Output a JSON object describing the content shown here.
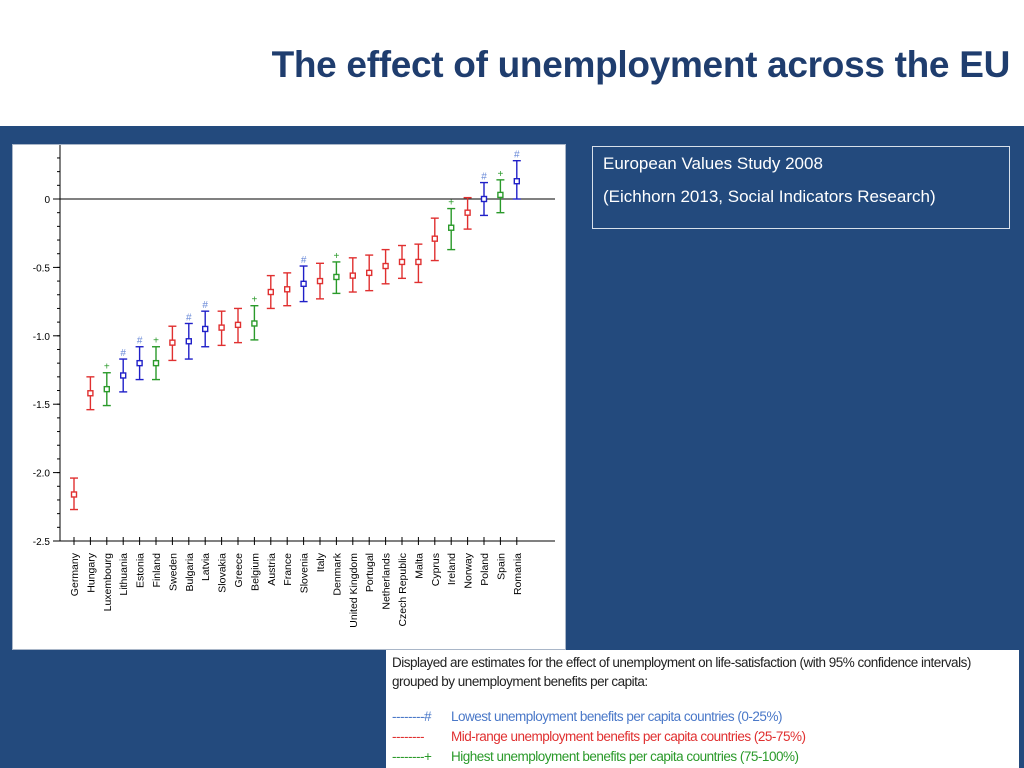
{
  "title": "The effect of unemployment across the EU",
  "source": {
    "line1": "European Values Study 2008",
    "line2": "(Eichhorn 2013, Social Indicators Research)"
  },
  "legend": {
    "description": "Displayed are estimates for the effect of unemployment on life-satisfaction (with 95% confidence intervals) grouped by unemployment benefits per capita:",
    "low": {
      "symbol": "--------#",
      "label": "Lowest unemployment benefits per capita countries (0-25%)",
      "color": "#4a78c8"
    },
    "mid": {
      "symbol": "--------",
      "label": "Mid-range unemployment benefits per capita countries (25-75%)",
      "color": "#e03030"
    },
    "high": {
      "symbol": "--------+",
      "label": "Highest unemployment benefits per capita countries (75-100%)",
      "color": "#2a9a2a"
    }
  },
  "chart_data": {
    "type": "scatter",
    "ylim": [
      -2.5,
      0.3
    ],
    "yticks": [
      0,
      -0.5,
      -1.0,
      -1.5,
      -2.0,
      -2.5
    ],
    "ytick_labels": [
      "0",
      "-0.5",
      "-1.0",
      "-1.5",
      "-2.0",
      "-2.5"
    ],
    "reference_line": 0,
    "group_markers": {
      "low": "#",
      "mid": "",
      "high": "+"
    },
    "group_colors": {
      "low": "#2020c8",
      "mid": "#e03030",
      "high": "#2a9a2a"
    },
    "marker_colors": {
      "low": "#6a8ad8",
      "mid": "#e03030",
      "high": "#2a9a2a"
    },
    "points": [
      {
        "country": "Germany",
        "group": "mid",
        "estimate": -2.16,
        "lower": -2.27,
        "upper": -2.04
      },
      {
        "country": "Hungary",
        "group": "mid",
        "estimate": -1.42,
        "lower": -1.54,
        "upper": -1.3
      },
      {
        "country": "Luxembourg",
        "group": "high",
        "estimate": -1.39,
        "lower": -1.51,
        "upper": -1.27
      },
      {
        "country": "Lithuania",
        "group": "low",
        "estimate": -1.29,
        "lower": -1.41,
        "upper": -1.17
      },
      {
        "country": "Estonia",
        "group": "low",
        "estimate": -1.2,
        "lower": -1.32,
        "upper": -1.08
      },
      {
        "country": "Finland",
        "group": "high",
        "estimate": -1.2,
        "lower": -1.32,
        "upper": -1.08
      },
      {
        "country": "Sweden",
        "group": "mid",
        "estimate": -1.05,
        "lower": -1.18,
        "upper": -0.93
      },
      {
        "country": "Bulgaria",
        "group": "low",
        "estimate": -1.04,
        "lower": -1.17,
        "upper": -0.91
      },
      {
        "country": "Latvia",
        "group": "low",
        "estimate": -0.95,
        "lower": -1.08,
        "upper": -0.82
      },
      {
        "country": "Slovakia",
        "group": "mid",
        "estimate": -0.94,
        "lower": -1.07,
        "upper": -0.82
      },
      {
        "country": "Greece",
        "group": "mid",
        "estimate": -0.92,
        "lower": -1.05,
        "upper": -0.8
      },
      {
        "country": "Belgium",
        "group": "high",
        "estimate": -0.91,
        "lower": -1.03,
        "upper": -0.78
      },
      {
        "country": "Austria",
        "group": "mid",
        "estimate": -0.68,
        "lower": -0.8,
        "upper": -0.56
      },
      {
        "country": "France",
        "group": "mid",
        "estimate": -0.66,
        "lower": -0.78,
        "upper": -0.54
      },
      {
        "country": "Slovenia",
        "group": "low",
        "estimate": -0.62,
        "lower": -0.75,
        "upper": -0.49
      },
      {
        "country": "Italy",
        "group": "mid",
        "estimate": -0.6,
        "lower": -0.73,
        "upper": -0.47
      },
      {
        "country": "Denmark",
        "group": "high",
        "estimate": -0.57,
        "lower": -0.69,
        "upper": -0.46
      },
      {
        "country": "United Kingdom",
        "group": "mid",
        "estimate": -0.56,
        "lower": -0.68,
        "upper": -0.43
      },
      {
        "country": "Portugal",
        "group": "mid",
        "estimate": -0.54,
        "lower": -0.67,
        "upper": -0.41
      },
      {
        "country": "Netherlands",
        "group": "mid",
        "estimate": -0.49,
        "lower": -0.62,
        "upper": -0.37
      },
      {
        "country": "Czech Republic",
        "group": "mid",
        "estimate": -0.46,
        "lower": -0.58,
        "upper": -0.34
      },
      {
        "country": "Malta",
        "group": "mid",
        "estimate": -0.46,
        "lower": -0.61,
        "upper": -0.33
      },
      {
        "country": "Cyprus",
        "group": "mid",
        "estimate": -0.29,
        "lower": -0.45,
        "upper": -0.14
      },
      {
        "country": "Ireland",
        "group": "high",
        "estimate": -0.21,
        "lower": -0.37,
        "upper": -0.07
      },
      {
        "country": "Norway",
        "group": "mid",
        "estimate": -0.1,
        "lower": -0.22,
        "upper": 0.01
      },
      {
        "country": "Poland",
        "group": "low",
        "estimate": 0.0,
        "lower": -0.12,
        "upper": 0.12
      },
      {
        "country": "Spain",
        "group": "high",
        "estimate": 0.03,
        "lower": -0.1,
        "upper": 0.14
      },
      {
        "country": "Romania",
        "group": "low",
        "estimate": 0.13,
        "lower": 0.0,
        "upper": 0.28
      }
    ]
  }
}
